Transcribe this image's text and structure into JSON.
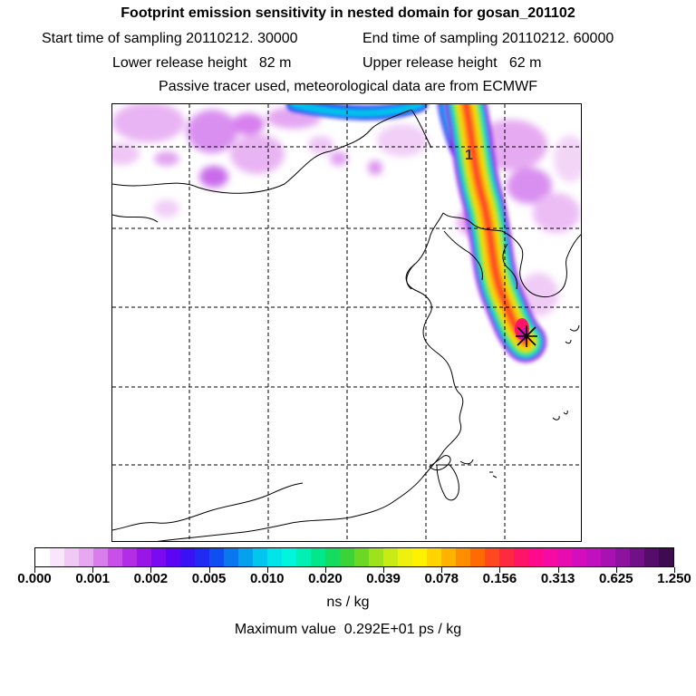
{
  "header": {
    "title": "Footprint emission sensitivity in nested domain for gosan_201102",
    "start_label": "Start time of sampling 20110212. 30000",
    "end_label": "End time of sampling 20110212. 60000",
    "lower_label": "Lower release height   82 m",
    "upper_label": "Upper release height   62 m",
    "note": "Passive tracer used, meteorological data are from ECMWF"
  },
  "map": {
    "release_marker_label": "1",
    "receptor_icon": "star-cross-icon"
  },
  "colorbar": {
    "tick_labels": [
      "0.000",
      "0.001",
      "0.002",
      "0.005",
      "0.010",
      "0.020",
      "0.039",
      "0.078",
      "0.156",
      "0.313",
      "0.625",
      "1.250"
    ],
    "colors": [
      "#ffffff",
      "#f9e6fb",
      "#f1c9f6",
      "#e6a8f1",
      "#d97ded",
      "#c84fe8",
      "#b32de6",
      "#9a15e8",
      "#7c0af0",
      "#5c05f5",
      "#3a10f5",
      "#1f2bf3",
      "#0f4ff1",
      "#0978ef",
      "#05a0ee",
      "#03c6ee",
      "#00e4ea",
      "#00f5dc",
      "#00f0b4",
      "#00e88a",
      "#14dc5f",
      "#3cd338",
      "#6bd823",
      "#9de21a",
      "#c9ea14",
      "#eef00d",
      "#fff200",
      "#ffd400",
      "#ffb300",
      "#ff8d00",
      "#ff6a00",
      "#ff4820",
      "#ff2a40",
      "#ff1468",
      "#ff0a8c",
      "#f50aa3",
      "#e60cb2",
      "#d40ebd",
      "#c010bf",
      "#a812b2",
      "#8e12a0",
      "#721088",
      "#560c6b",
      "#3e0a50"
    ],
    "units": "ns / kg",
    "max_value_text": "Maximum value  0.292E+01 ps / kg"
  }
}
